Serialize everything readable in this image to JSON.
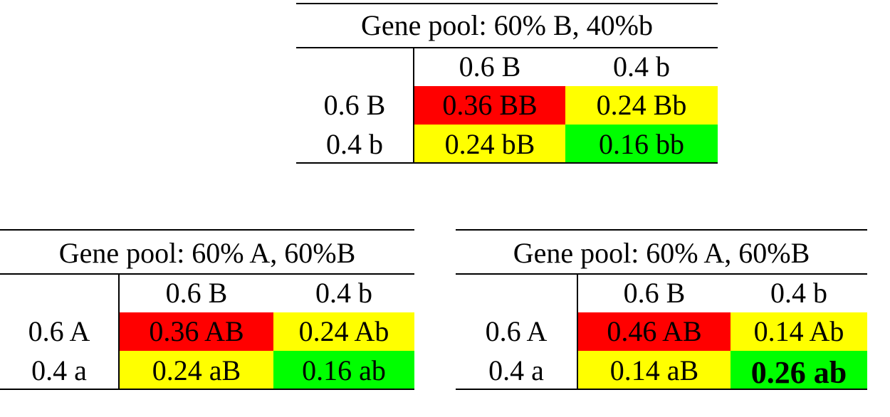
{
  "tables": [
    {
      "title": "Gene pool: 60% B, 40%b",
      "col_headers": [
        "0.6 B",
        "0.4 b"
      ],
      "row_headers": [
        "0.6 B",
        "0.4 b"
      ],
      "cells": [
        [
          "0.36 BB",
          "0.24 Bb"
        ],
        [
          "0.24 bB",
          "0.16 bb"
        ]
      ]
    },
    {
      "title": "Gene pool: 60% A, 60%B",
      "col_headers": [
        "0.6 B",
        "0.4 b"
      ],
      "row_headers": [
        "0.6 A",
        "0.4 a"
      ],
      "cells": [
        [
          "0.36 AB",
          "0.24 Ab"
        ],
        [
          "0.24 aB",
          "0.16 ab"
        ]
      ]
    },
    {
      "title": "Gene pool: 60% A, 60%B",
      "col_headers": [
        "0.6 B",
        "0.4 b"
      ],
      "row_headers": [
        "0.6 A",
        "0.4 a"
      ],
      "cells": [
        [
          "0.46 AB",
          "0.14 Ab"
        ],
        [
          "0.14 aB",
          "0.26 ab"
        ]
      ]
    }
  ],
  "colors": {
    "dominant": "#ff0000",
    "heterozygous": "#ffff00",
    "recessive": "#00ff00",
    "border": "#000000"
  }
}
